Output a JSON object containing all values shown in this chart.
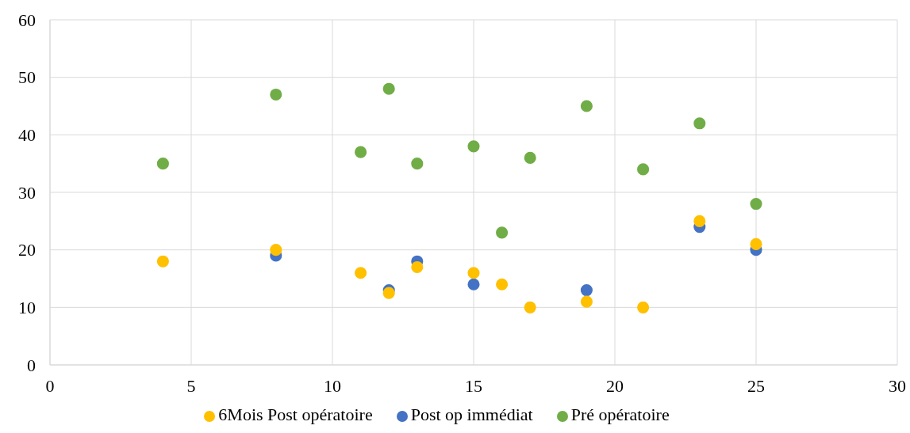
{
  "chart_data": {
    "type": "scatter",
    "x": [
      4,
      8,
      11,
      12,
      13,
      15,
      16,
      17,
      19,
      21,
      23,
      25
    ],
    "series": [
      {
        "name": "Pré opératoire",
        "color": "#70ad47",
        "values": [
          35,
          47,
          37,
          48,
          35,
          38,
          23,
          36,
          45,
          34,
          42,
          28
        ]
      },
      {
        "name": "Post op immédiat",
        "color": "#4472c4",
        "values": [
          null,
          19,
          null,
          13,
          18,
          14,
          null,
          null,
          13,
          null,
          24,
          20
        ]
      },
      {
        "name": "6Mois Post opératoire",
        "color": "#ffc000",
        "values": [
          18,
          20,
          16,
          12.5,
          17,
          16,
          14,
          10,
          11,
          10,
          25,
          21
        ]
      }
    ],
    "xlim": [
      0,
      30
    ],
    "xticks": [
      0,
      5,
      10,
      15,
      20,
      25,
      30
    ],
    "ylim": [
      0,
      60
    ],
    "yticks": [
      0,
      10,
      20,
      30,
      40,
      50,
      60
    ],
    "grid": true,
    "legend": "bottom",
    "marker": "circle"
  }
}
